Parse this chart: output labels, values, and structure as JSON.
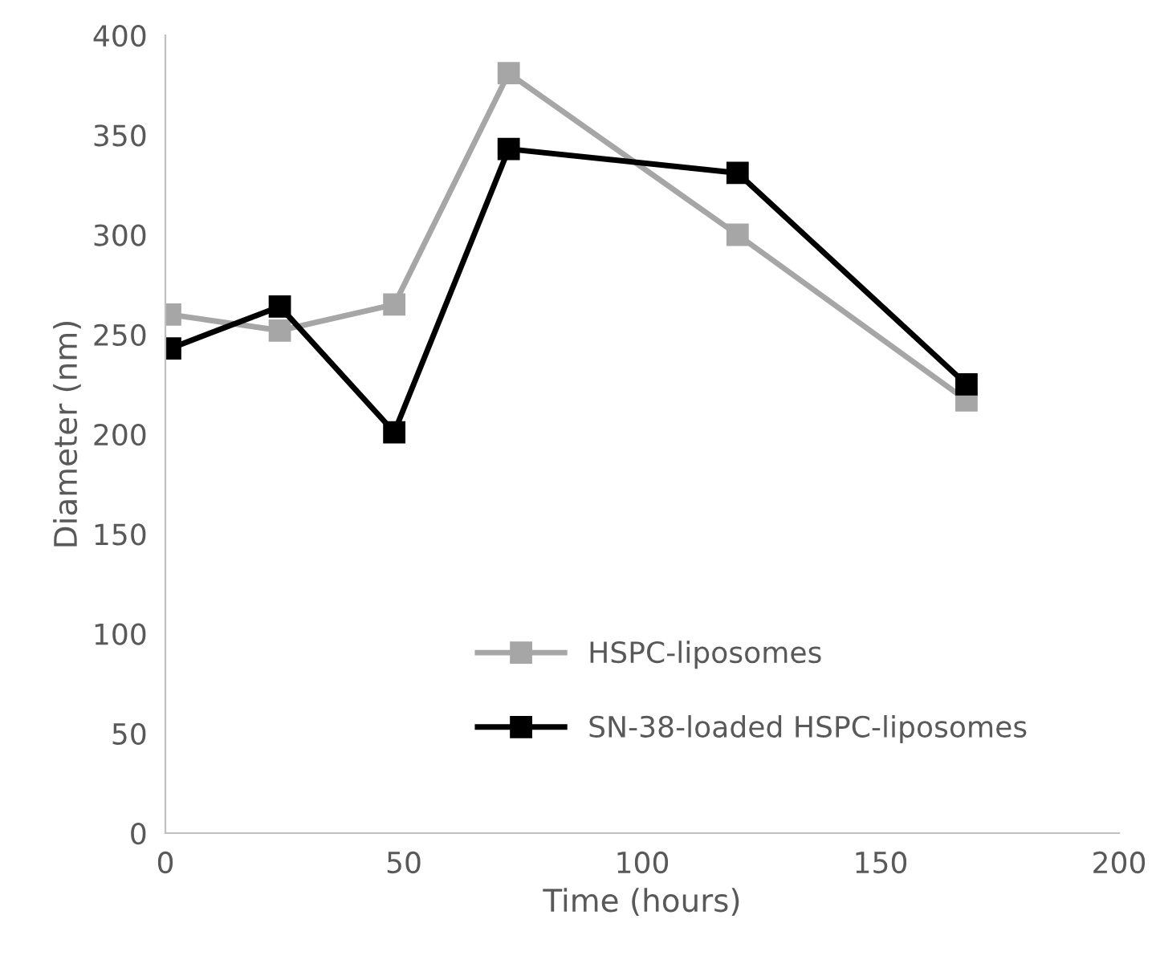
{
  "chart_data": {
    "type": "line",
    "xlabel": "Time (hours)",
    "ylabel": "Diameter (nm)",
    "xlim": [
      0,
      200
    ],
    "xticks": [
      0,
      50,
      100,
      150,
      200
    ],
    "ylim": [
      0,
      400
    ],
    "yticks": [
      0,
      50,
      100,
      150,
      200,
      250,
      300,
      350,
      400
    ],
    "grid": false,
    "legend": "bottom right",
    "marker": "square",
    "line_style": "solid",
    "series": [
      {
        "name": "HSPC-liposomes",
        "color": "#a6a6a6",
        "x": [
          1,
          24,
          48,
          72,
          120,
          168
        ],
        "values": [
          260,
          252,
          265,
          381,
          300,
          217
        ]
      },
      {
        "name": "SN-38-loaded HSPC-liposomes",
        "color": "#000000",
        "x": [
          1,
          24,
          48,
          72,
          120,
          168
        ],
        "values": [
          243,
          264,
          201,
          343,
          331,
          225
        ]
      }
    ]
  }
}
